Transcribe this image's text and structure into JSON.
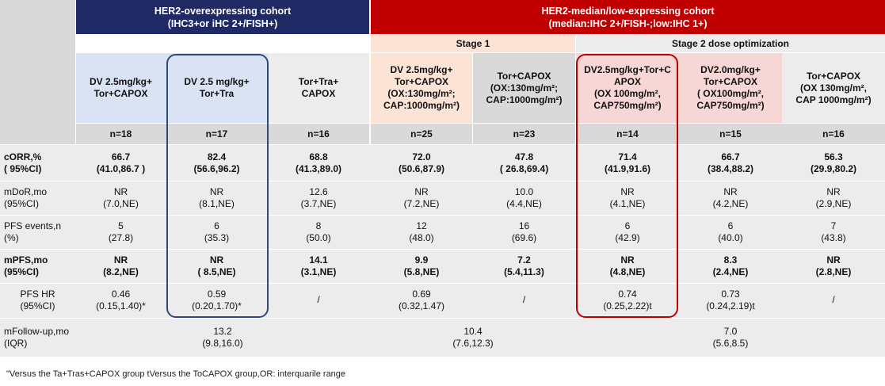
{
  "headers": {
    "her2_over": {
      "line1": "HER2-overexpressing cohort",
      "line2": "(IHC3+or iHC 2+/FISH+)"
    },
    "her2_low": {
      "line1": "HER2-median/low-expressing cohort",
      "line2": "(median:IHC 2+/FISH-;low:IHC 1+)"
    },
    "stage1": "Stage 1",
    "stage2": "Stage 2 dose optimization"
  },
  "arms": [
    {
      "name": "DV 2.5mg/kg+\nTor+CAPOX",
      "n": "n=18"
    },
    {
      "name": "DV 2.5 mg/kg+\nTor+Tra",
      "n": "n=17"
    },
    {
      "name": "Tor+Tra+\nCAPOX",
      "n": "n=16"
    },
    {
      "name": "DV 2.5mg/kg+\nTor+CAPOX\n(OX:130mg/m²;\nCAP:1000mg/m²)",
      "n": "n=25"
    },
    {
      "name": "Tor+CAPOX\n(OX:130mg/m²;\nCAP:1000mg/m²)",
      "n": "n=23"
    },
    {
      "name": "DV2.5mg/kg+Tor+C\nAPOX\n(OX 100mg/m²,\nCAP750mg/m²)",
      "n": "n=14"
    },
    {
      "name": "DV2.0mg/kg+\nTor+CAPOX\n( OX100mg/m²,\nCAP750mg/m²)",
      "n": "n=15"
    },
    {
      "name": "Tor+CAPOX\n(OX 130mg/m²,\nCAP 1000mg/m²)",
      "n": "n=16"
    }
  ],
  "rows": [
    {
      "label": "cORR,%\n( 95%CI)",
      "bold": true,
      "values": [
        "66.7\n(41.0,86.7 )",
        "82.4\n(56.6,96.2)",
        "68.8\n(41.3,89.0)",
        "72.0\n(50.6,87.9)",
        "47.8\n( 26.8,69.4)",
        "71.4\n(41.9,91.6)",
        "66.7\n(38.4,88.2)",
        "56.3\n(29.9,80.2)"
      ]
    },
    {
      "label": "mDoR,mo\n(95%CI)",
      "bold": false,
      "values": [
        "NR\n(7.0,NE)",
        "NR\n(8.1,NE)",
        "12.6\n(3.7,NE)",
        "NR\n(7.2,NE)",
        "10.0\n(4.4,NE)",
        "NR\n(4.1,NE)",
        "NR\n(4.2,NE)",
        "NR\n(2.9,NE)"
      ]
    },
    {
      "label": "PFS events,n\n(%)",
      "bold": false,
      "values": [
        "5\n(27.8)",
        "6\n(35.3)",
        "8\n(50.0)",
        "12\n(48.0)",
        "16\n(69.6)",
        "6\n(42.9)",
        "6\n(40.0)",
        "7\n(43.8)"
      ]
    },
    {
      "label": "mPFS,mo\n(95%CI)",
      "bold": true,
      "values": [
        "NR\n(8.2,NE)",
        "NR\n( 8.5,NE)",
        "14.1\n(3.1,NE)",
        "9.9\n(5.8,NE)",
        "7.2\n(5.4,11.3)",
        "NR\n(4.8,NE)",
        "8.3\n(2.4,NE)",
        "NR\n(2.8,NE)"
      ]
    },
    {
      "label": "PFS HR\n(95%CI)",
      "bold": false,
      "values": [
        "0.46\n(0.15,1.40)*",
        "0.59\n(0.20,1.70)*",
        "/",
        "0.69\n(0.32,1.47)",
        "/",
        "0.74\n(0.25,2.22)t",
        "0.73\n(0.24,2.19)t",
        "/"
      ]
    }
  ],
  "followup": {
    "label": "mFollow-up,mo\n(IQR)",
    "values": [
      "13.2\n(9.8,16.0)",
      "10.4\n(7.6,12.3)",
      "7.0\n(5.6,8.5)"
    ]
  },
  "footnote": "\"Versus the Ta+Tras+CAPOX group tVersus the ToCAPOX group,OR: interquarile range",
  "colors": {
    "navy": "#1f2a64",
    "red": "#c00000",
    "blue_highlight": "#dae3f3",
    "outline_blue": "#2f4a7a",
    "outline_red": "#c00000"
  }
}
